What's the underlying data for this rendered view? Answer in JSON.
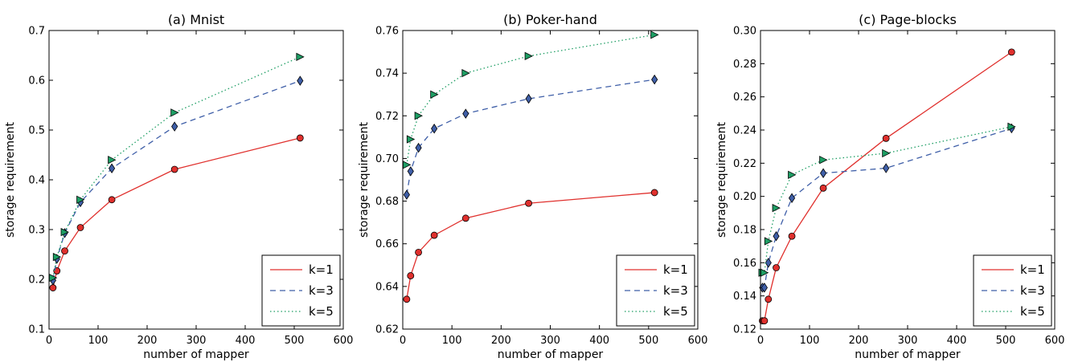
{
  "chart_data": [
    {
      "type": "line",
      "title": "(a) Mnist",
      "xlabel": "number of mapper",
      "ylabel": "storage requirement",
      "xlim": [
        0,
        600
      ],
      "ylim": [
        0.1,
        0.7
      ],
      "xticks": [
        0,
        100,
        200,
        300,
        400,
        500,
        600
      ],
      "yticks": [
        0.1,
        0.2,
        0.3,
        0.4,
        0.5,
        0.6,
        0.7
      ],
      "xtick_labels": [
        "0",
        "100",
        "200",
        "300",
        "400",
        "500",
        "600"
      ],
      "ytick_labels": [
        "0.1",
        "0.2",
        "0.3",
        "0.4",
        "0.5",
        "0.6",
        "0.7"
      ],
      "x": [
        8,
        16,
        32,
        64,
        128,
        256,
        512
      ],
      "legend_position": "lower-right",
      "series": [
        {
          "name": "k=1",
          "values": [
            0.183,
            0.217,
            0.257,
            0.304,
            0.36,
            0.421,
            0.484
          ],
          "color": "#e0302d",
          "linestyle": "solid",
          "marker": "circle"
        },
        {
          "name": "k=3",
          "values": [
            0.198,
            0.241,
            0.293,
            0.355,
            0.423,
            0.507,
            0.599
          ],
          "color": "#3f5fa8",
          "linestyle": "dashed",
          "marker": "diamond"
        },
        {
          "name": "k=5",
          "values": [
            0.203,
            0.245,
            0.295,
            0.36,
            0.44,
            0.535,
            0.647
          ],
          "color": "#1e9e64",
          "linestyle": "dotted",
          "marker": "triangle-right"
        }
      ]
    },
    {
      "type": "line",
      "title": "(b) Poker-hand",
      "xlabel": "number of mapper",
      "ylabel": "storage requirement",
      "xlim": [
        0,
        600
      ],
      "ylim": [
        0.62,
        0.76
      ],
      "xticks": [
        0,
        100,
        200,
        300,
        400,
        500,
        600
      ],
      "yticks": [
        0.62,
        0.64,
        0.66,
        0.68,
        0.7,
        0.72,
        0.74,
        0.76
      ],
      "xtick_labels": [
        "0",
        "100",
        "200",
        "300",
        "400",
        "500",
        "600"
      ],
      "ytick_labels": [
        "0.62",
        "0.64",
        "0.66",
        "0.68",
        "0.70",
        "0.72",
        "0.74",
        "0.76"
      ],
      "x": [
        8,
        16,
        32,
        64,
        128,
        256,
        512
      ],
      "legend_position": "lower-right",
      "series": [
        {
          "name": "k=1",
          "values": [
            0.634,
            0.645,
            0.656,
            0.664,
            0.672,
            0.679,
            0.684
          ],
          "color": "#e0302d",
          "linestyle": "solid",
          "marker": "circle"
        },
        {
          "name": "k=3",
          "values": [
            0.683,
            0.694,
            0.705,
            0.714,
            0.721,
            0.728,
            0.737
          ],
          "color": "#3f5fa8",
          "linestyle": "dashed",
          "marker": "diamond"
        },
        {
          "name": "k=5",
          "values": [
            0.697,
            0.709,
            0.72,
            0.73,
            0.74,
            0.748,
            0.758
          ],
          "color": "#1e9e64",
          "linestyle": "dotted",
          "marker": "triangle-right"
        }
      ]
    },
    {
      "type": "line",
      "title": "(c) Page-blocks",
      "xlabel": "number of mapper",
      "ylabel": "storage requirement",
      "xlim": [
        0,
        600
      ],
      "ylim": [
        0.12,
        0.3
      ],
      "xticks": [
        0,
        100,
        200,
        300,
        400,
        500,
        600
      ],
      "yticks": [
        0.12,
        0.14,
        0.16,
        0.18,
        0.2,
        0.22,
        0.24,
        0.26,
        0.28,
        0.3
      ],
      "xtick_labels": [
        "0",
        "100",
        "200",
        "300",
        "400",
        "500",
        "600"
      ],
      "ytick_labels": [
        "0.12",
        "0.14",
        "0.16",
        "0.18",
        "0.20",
        "0.22",
        "0.24",
        "0.26",
        "0.28",
        "0.30"
      ],
      "x": [
        4,
        8,
        16,
        32,
        64,
        128,
        256,
        512
      ],
      "legend_position": "lower-right",
      "series": [
        {
          "name": "k=1",
          "values": [
            0.125,
            0.125,
            0.138,
            0.157,
            0.176,
            0.205,
            0.235,
            0.287
          ],
          "color": "#e0302d",
          "linestyle": "solid",
          "marker": "circle"
        },
        {
          "name": "k=3",
          "values": [
            0.145,
            0.145,
            0.16,
            0.176,
            0.199,
            0.214,
            0.217,
            0.241
          ],
          "color": "#3f5fa8",
          "linestyle": "dashed",
          "marker": "diamond"
        },
        {
          "name": "k=5",
          "values": [
            0.154,
            0.154,
            0.173,
            0.193,
            0.213,
            0.222,
            0.226,
            0.242
          ],
          "color": "#1e9e64",
          "linestyle": "dotted",
          "marker": "triangle-right"
        }
      ]
    }
  ]
}
